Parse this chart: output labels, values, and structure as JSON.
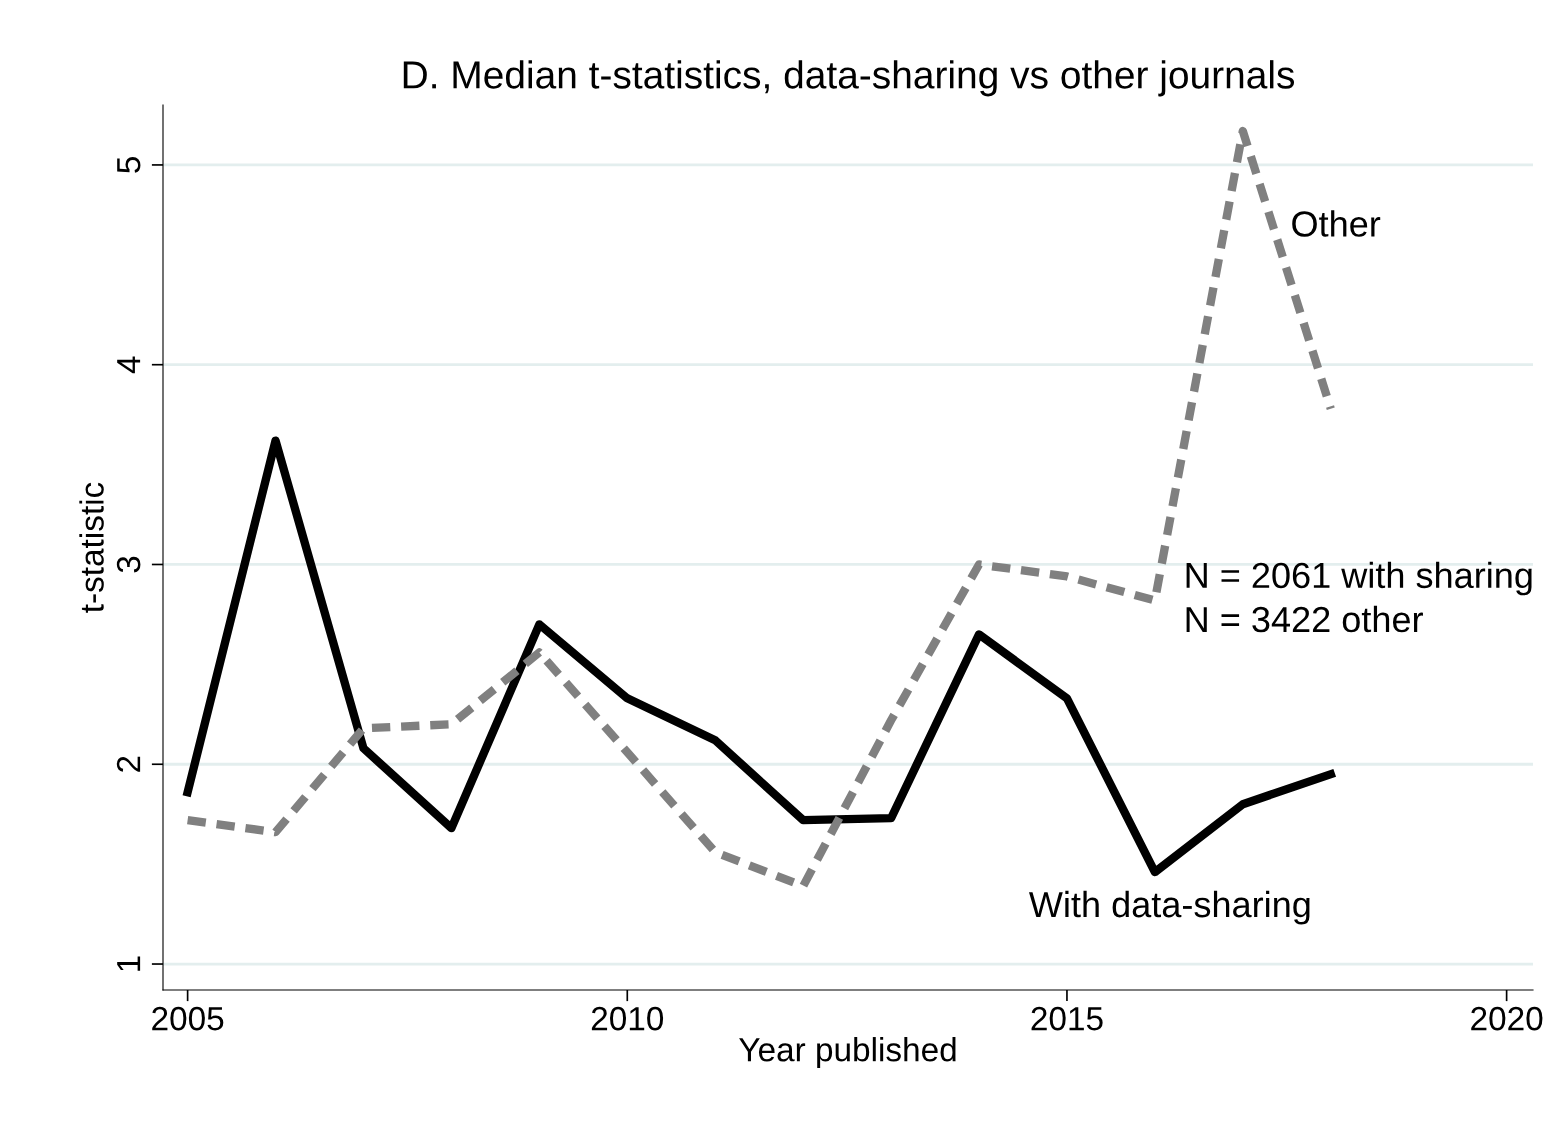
{
  "chart_data": {
    "type": "line",
    "title": "D. Median t-statistics, data-sharing vs other journals",
    "xlabel": "Year published",
    "ylabel": "t-statistic",
    "x": [
      2005,
      2006,
      2007,
      2008,
      2009,
      2010,
      2011,
      2012,
      2013,
      2014,
      2015,
      2016,
      2017,
      2018
    ],
    "series": [
      {
        "color": "#000000",
        "line_style": "solid",
        "values": [
          1.86,
          3.62,
          2.08,
          1.68,
          2.7,
          2.33,
          2.12,
          1.72,
          1.73,
          2.65,
          2.33,
          1.46,
          1.8,
          1.95
        ]
      },
      {
        "color": "#808080",
        "line_style": "dashed",
        "values": [
          1.72,
          1.66,
          2.18,
          2.2,
          2.56,
          2.06,
          1.56,
          1.39,
          2.22,
          3.0,
          2.94,
          2.82,
          5.17,
          3.78
        ]
      }
    ],
    "xlim": [
      2004.72,
      2020.3
    ],
    "ylim": [
      0.87,
      5.3
    ],
    "xticks": [
      2005,
      2010,
      2015,
      2020
    ],
    "yticks": [
      1,
      2,
      3,
      4,
      5
    ],
    "grid": "y",
    "legend": false,
    "marker": "none",
    "annotations": [
      "Other",
      "With data-sharing",
      "N = 2061 with sharing\nN = 3422 other"
    ]
  }
}
